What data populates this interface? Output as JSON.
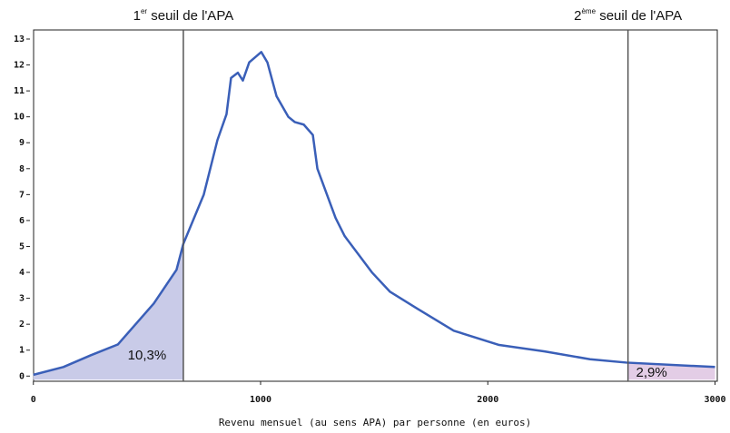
{
  "chart_data": {
    "type": "line",
    "x_label": "Revenu mensuel (au sens APA) par personne (en euros)",
    "xlim": [
      -15,
      3010
    ],
    "ylim": [
      -0.2,
      13.35
    ],
    "xticks": [
      0,
      1000,
      2000,
      3000
    ],
    "yticks": [
      0,
      1,
      2,
      3,
      4,
      5,
      6,
      7,
      8,
      9,
      10,
      11,
      12,
      13
    ],
    "series": [
      {
        "color": "#3a5fb8",
        "x": [
          0,
          132,
          252,
          372,
          530,
          630,
          660,
          750,
          810,
          850,
          870,
          900,
          922,
          950,
          1003,
          1030,
          1070,
          1122,
          1150,
          1190,
          1230,
          1250,
          1330,
          1370,
          1490,
          1570,
          1690,
          1850,
          2050,
          2250,
          2450,
          2610,
          3000
        ],
        "values": [
          0.05,
          0.35,
          0.8,
          1.22,
          2.8,
          4.1,
          5.1,
          7.0,
          9.1,
          10.1,
          11.5,
          11.7,
          11.4,
          12.1,
          12.5,
          12.1,
          10.8,
          10.0,
          9.8,
          9.7,
          9.3,
          8.0,
          6.1,
          5.4,
          4.0,
          3.25,
          2.6,
          1.75,
          1.2,
          0.95,
          0.65,
          0.52,
          0.35
        ]
      }
    ],
    "thresholds": [
      {
        "x": 660,
        "label": {
          "number": "1",
          "sup": "er",
          "text": " seuil de l'APA"
        },
        "share": "10,3%",
        "fill": "#c9cbe8",
        "side": "below"
      },
      {
        "x": 2617,
        "label": {
          "number": "2",
          "sup": "ème",
          "text": " seuil de l'APA"
        },
        "share": "2,9%",
        "fill": "#e3cde6",
        "side": "above"
      }
    ]
  }
}
